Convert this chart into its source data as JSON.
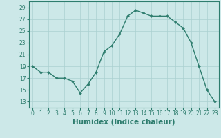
{
  "xlabel": "Humidex (Indice chaleur)",
  "x_values": [
    0,
    1,
    2,
    3,
    4,
    5,
    6,
    7,
    8,
    9,
    10,
    11,
    12,
    13,
    14,
    15,
    16,
    17,
    18,
    19,
    20,
    21,
    22,
    23
  ],
  "y_values": [
    19,
    18,
    18,
    17,
    17,
    16.5,
    14.5,
    16,
    18,
    21.5,
    22.5,
    24.5,
    27.5,
    28.5,
    28,
    27.5,
    27.5,
    27.5,
    26.5,
    25.5,
    23,
    19,
    15,
    13
  ],
  "line_color": "#2e7d6e",
  "marker": "D",
  "marker_size": 2.0,
  "line_width": 1.0,
  "background_color": "#cce8e8",
  "grid_color": "#aad0d0",
  "ylim": [
    12,
    30
  ],
  "yticks": [
    13,
    15,
    17,
    19,
    21,
    23,
    25,
    27,
    29
  ],
  "xticks": [
    0,
    1,
    2,
    3,
    4,
    5,
    6,
    7,
    8,
    9,
    10,
    11,
    12,
    13,
    14,
    15,
    16,
    17,
    18,
    19,
    20,
    21,
    22,
    23
  ],
  "tick_label_fontsize": 5.5,
  "xlabel_fontsize": 7.5
}
